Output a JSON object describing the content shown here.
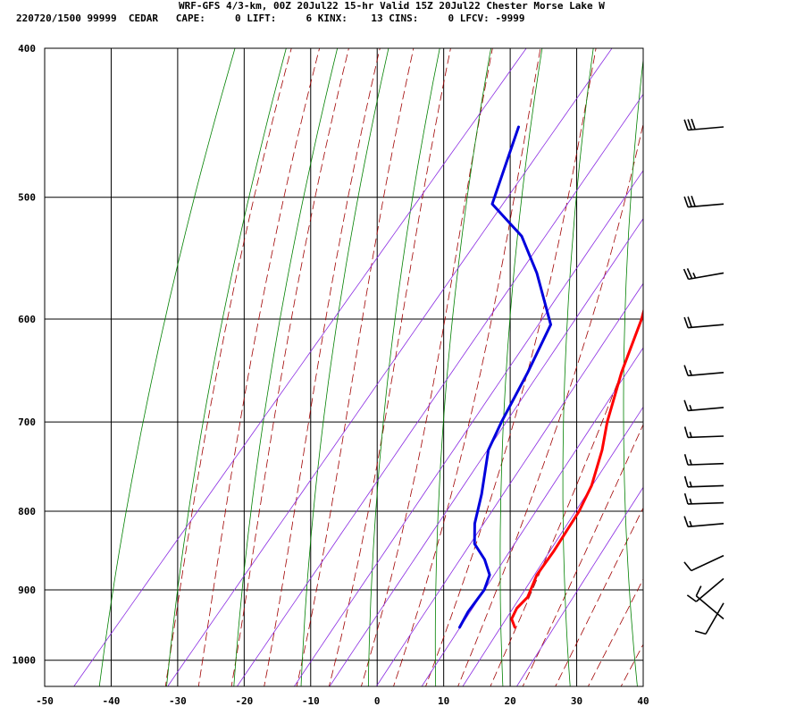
{
  "header": {
    "line1": "WRF-GFS 4/3-km, 00Z 20Jul22 15-hr Valid 15Z 20Jul22 Chester Morse Lake W",
    "line2": "220720/1500 99999  CEDAR   CAPE:     0 LIFT:     6 KINX:    13 CINS:     0 LFCV: -9999"
  },
  "chart_data": {
    "type": "line",
    "chart_kind": "skew-T log-P sounding",
    "xlabel": "",
    "ylabel": "",
    "xlim": [
      -50,
      40
    ],
    "ylim": [
      1040,
      400
    ],
    "y_scale": "log",
    "x_ticks": [
      -50,
      -40,
      -30,
      -20,
      -10,
      0,
      10,
      20,
      30,
      40
    ],
    "x_tick_labels": [
      "-50",
      "-40",
      "-30",
      "-20",
      "-10",
      "0",
      "10",
      "20",
      "30",
      "40"
    ],
    "y_ticks": [
      400,
      500,
      600,
      700,
      800,
      900,
      1000
    ],
    "y_tick_labels": [
      "400",
      "500",
      "600",
      "700",
      "800",
      "900",
      "1000"
    ],
    "grid": true,
    "series": [
      {
        "role": "temperature",
        "color": "#ff0000",
        "points": [
          {
            "p": 952,
            "t": 18.0
          },
          {
            "p": 940,
            "t": 16.5
          },
          {
            "p": 925,
            "t": 16.0
          },
          {
            "p": 910,
            "t": 16.3
          },
          {
            "p": 880,
            "t": 15.0
          },
          {
            "p": 850,
            "t": 14.7
          },
          {
            "p": 800,
            "t": 13.7
          },
          {
            "p": 770,
            "t": 12.5
          },
          {
            "p": 730,
            "t": 9.8
          },
          {
            "p": 700,
            "t": 7.2
          },
          {
            "p": 650,
            "t": 3.4
          },
          {
            "p": 600,
            "t": 0.0
          },
          {
            "p": 560,
            "t": -3.7
          },
          {
            "p": 500,
            "t": -9.0
          },
          {
            "p": 450,
            "t": -14.5
          }
        ]
      },
      {
        "role": "dewpoint",
        "color": "#0000dd",
        "points": [
          {
            "p": 952,
            "t": 9.7
          },
          {
            "p": 930,
            "t": 9.1
          },
          {
            "p": 900,
            "t": 8.9
          },
          {
            "p": 880,
            "t": 7.9
          },
          {
            "p": 860,
            "t": 5.3
          },
          {
            "p": 840,
            "t": 1.9
          },
          {
            "p": 815,
            "t": -0.5
          },
          {
            "p": 780,
            "t": -3.0
          },
          {
            "p": 730,
            "t": -7.3
          },
          {
            "p": 700,
            "t": -8.7
          },
          {
            "p": 650,
            "t": -10.7
          },
          {
            "p": 605,
            "t": -13.0
          },
          {
            "p": 560,
            "t": -21.3
          },
          {
            "p": 530,
            "t": -28.0
          },
          {
            "p": 505,
            "t": -36.3
          },
          {
            "p": 450,
            "t": -41.6
          }
        ]
      }
    ],
    "wind_barbs": [
      {
        "p": 450,
        "dir": 265,
        "speed": 30
      },
      {
        "p": 505,
        "dir": 265,
        "speed": 30
      },
      {
        "p": 560,
        "dir": 260,
        "speed": 25
      },
      {
        "p": 605,
        "dir": 265,
        "speed": 20
      },
      {
        "p": 650,
        "dir": 265,
        "speed": 15
      },
      {
        "p": 685,
        "dir": 265,
        "speed": 15
      },
      {
        "p": 715,
        "dir": 268,
        "speed": 15
      },
      {
        "p": 745,
        "dir": 268,
        "speed": 15
      },
      {
        "p": 770,
        "dir": 268,
        "speed": 15
      },
      {
        "p": 790,
        "dir": 268,
        "speed": 15
      },
      {
        "p": 815,
        "dir": 265,
        "speed": 15
      },
      {
        "p": 855,
        "dir": 245,
        "speed": 10
      },
      {
        "p": 885,
        "dir": 230,
        "speed": 10
      },
      {
        "p": 918,
        "dir": 210,
        "speed": 10
      },
      {
        "p": 940,
        "dir": 310,
        "speed": 10
      }
    ],
    "colors": {
      "isotherm_isobar": "#000000",
      "dry_adiabat": "#008000",
      "moist_adiabat": "#a00000",
      "mixing_ratio": "#8a2be2",
      "temperature": "#ff0000",
      "dewpoint": "#0000dd",
      "barb": "#000000"
    }
  }
}
